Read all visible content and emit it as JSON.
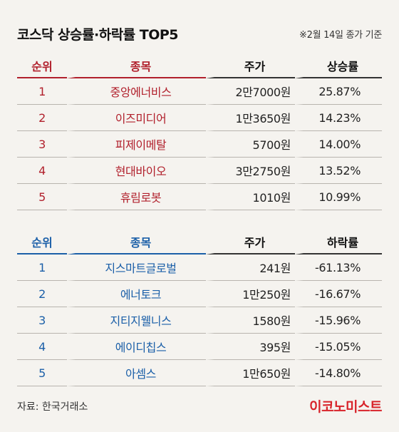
{
  "title": "코스닥 상승률·하락률 TOP5",
  "note": "※2월 14일 종가 기준",
  "source": "자료: 한국거래소",
  "brand": "이코노미스트",
  "colors": {
    "gainer": "#b1202c",
    "loser": "#1b5fa8",
    "brand": "#d8232a",
    "background": "#f5f3ef"
  },
  "chart_data": [
    {
      "type": "table",
      "columns": [
        "순위",
        "종목",
        "주가",
        "상승률"
      ],
      "rows": [
        [
          "1",
          "중앙에너비스",
          "2만7000원",
          "25.87%"
        ],
        [
          "2",
          "이즈미디어",
          "1만3650원",
          "14.23%"
        ],
        [
          "3",
          "피제이메탈",
          "5700원",
          "14.00%"
        ],
        [
          "4",
          "현대바이오",
          "3만2750원",
          "13.52%"
        ],
        [
          "5",
          "휴림로봇",
          "1010원",
          "10.99%"
        ]
      ]
    },
    {
      "type": "table",
      "columns": [
        "순위",
        "종목",
        "주가",
        "하락률"
      ],
      "rows": [
        [
          "1",
          "지스마트글로벌",
          "241원",
          "-61.13%"
        ],
        [
          "2",
          "에너토크",
          "1만250원",
          "-16.67%"
        ],
        [
          "3",
          "지티지웰니스",
          "1580원",
          "-15.96%"
        ],
        [
          "4",
          "에이디칩스",
          "395원",
          "-15.05%"
        ],
        [
          "5",
          "아셈스",
          "1만650원",
          "-14.80%"
        ]
      ]
    }
  ]
}
